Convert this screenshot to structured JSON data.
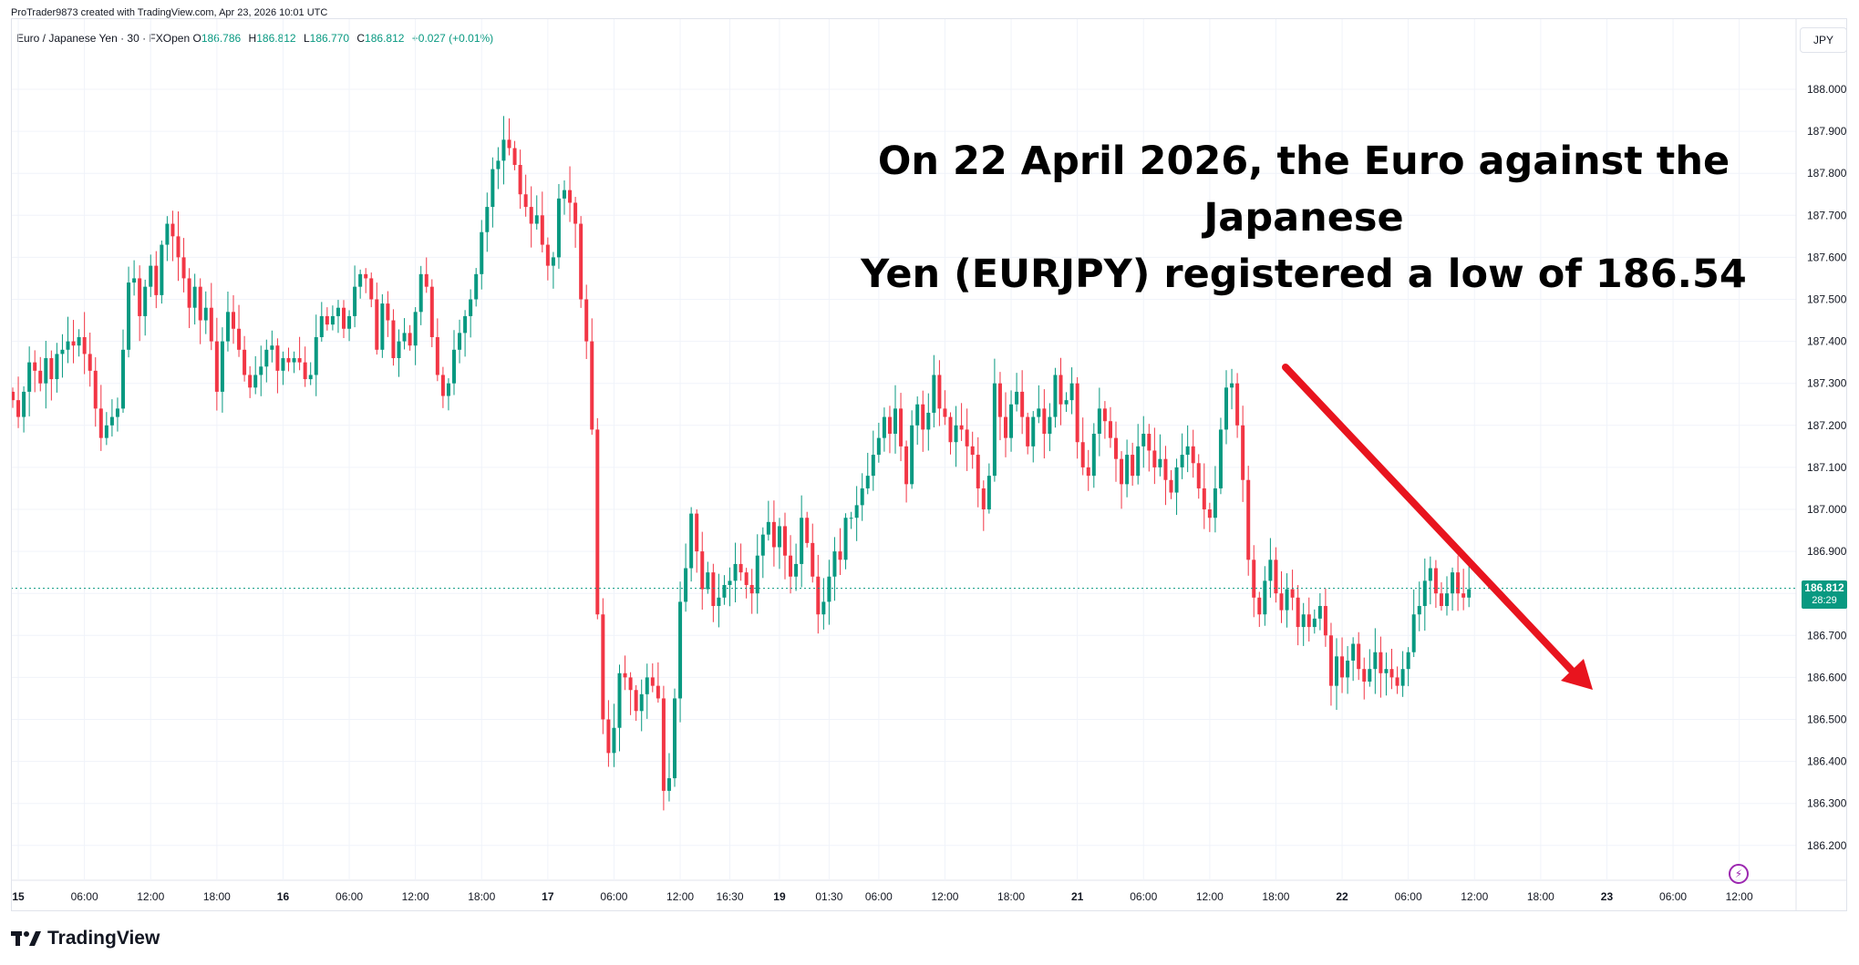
{
  "header": {
    "credit": "ProTrader9873 created with TradingView.com, Apr 23, 2026 10:01 UTC",
    "symbol": "Euro / Japanese Yen · 30 · FXOpen",
    "ohlc": {
      "o_label": "O",
      "o": "186.786",
      "h_label": "H",
      "h": "186.812",
      "l_label": "L",
      "l": "186.770",
      "c_label": "C",
      "c": "186.812",
      "change": "+0.027 (+0.01%)"
    },
    "currency_button": "JPY"
  },
  "annotation": {
    "line1": "On 22 April 2026, the Euro against the Japanese",
    "line2": "Yen (EURJPY) registered a low of 186.54"
  },
  "price_tag": {
    "price": "186.812",
    "timer": "28:29"
  },
  "brand": "TradingView",
  "colors": {
    "up": "#089981",
    "down": "#f23645",
    "arrow": "#e8141e",
    "grid": "#f0f3fa",
    "text": "#131722"
  },
  "chart_data": {
    "type": "candlestick",
    "title": "Euro / Japanese Yen · 30 · FXOpen",
    "ylim": [
      186.1,
      188.1
    ],
    "y_ticks": [
      "188.000",
      "187.900",
      "187.800",
      "187.700",
      "187.600",
      "187.500",
      "187.400",
      "187.300",
      "187.200",
      "187.100",
      "187.000",
      "186.900",
      "186.800",
      "186.700",
      "186.600",
      "186.500",
      "186.400",
      "186.300",
      "186.200"
    ],
    "x_ticks": [
      {
        "label": "15",
        "bold": true,
        "i": 1
      },
      {
        "label": "06:00",
        "bold": false,
        "i": 13
      },
      {
        "label": "12:00",
        "bold": false,
        "i": 25
      },
      {
        "label": "18:00",
        "bold": false,
        "i": 37
      },
      {
        "label": "16",
        "bold": true,
        "i": 49
      },
      {
        "label": "06:00",
        "bold": false,
        "i": 61
      },
      {
        "label": "12:00",
        "bold": false,
        "i": 73
      },
      {
        "label": "18:00",
        "bold": false,
        "i": 85
      },
      {
        "label": "17",
        "bold": true,
        "i": 97
      },
      {
        "label": "06:00",
        "bold": false,
        "i": 109
      },
      {
        "label": "12:00",
        "bold": false,
        "i": 121
      },
      {
        "label": "16:30",
        "bold": false,
        "i": 130
      },
      {
        "label": "19",
        "bold": true,
        "i": 139
      },
      {
        "label": "01:30",
        "bold": false,
        "i": 148
      },
      {
        "label": "06:00",
        "bold": false,
        "i": 157
      },
      {
        "label": "12:00",
        "bold": false,
        "i": 169
      },
      {
        "label": "18:00",
        "bold": false,
        "i": 181
      },
      {
        "label": "21",
        "bold": true,
        "i": 193
      },
      {
        "label": "06:00",
        "bold": false,
        "i": 205
      },
      {
        "label": "12:00",
        "bold": false,
        "i": 217
      },
      {
        "label": "18:00",
        "bold": false,
        "i": 229
      },
      {
        "label": "22",
        "bold": true,
        "i": 241
      },
      {
        "label": "06:00",
        "bold": false,
        "i": 253
      },
      {
        "label": "12:00",
        "bold": false,
        "i": 265
      },
      {
        "label": "18:00",
        "bold": false,
        "i": 277
      },
      {
        "label": "23",
        "bold": true,
        "i": 289
      },
      {
        "label": "06:00",
        "bold": false,
        "i": 301
      },
      {
        "label": "12:00",
        "bold": false,
        "i": 313
      }
    ],
    "closes": [
      187.26,
      187.22,
      187.28,
      187.35,
      187.33,
      187.3,
      187.36,
      187.31,
      187.37,
      187.38,
      187.4,
      187.39,
      187.41,
      187.37,
      187.33,
      187.24,
      187.17,
      187.2,
      187.22,
      187.24,
      187.38,
      187.54,
      187.55,
      187.46,
      187.53,
      187.58,
      187.51,
      187.63,
      187.68,
      187.65,
      187.6,
      187.55,
      187.48,
      187.53,
      187.45,
      187.48,
      187.4,
      187.28,
      187.4,
      187.47,
      187.43,
      187.38,
      187.32,
      187.29,
      187.32,
      187.34,
      187.38,
      187.39,
      187.33,
      187.36,
      187.35,
      187.36,
      187.35,
      187.31,
      187.32,
      187.41,
      187.46,
      187.44,
      187.46,
      187.48,
      187.43,
      187.46,
      187.53,
      187.56,
      187.55,
      187.5,
      187.38,
      187.49,
      187.45,
      187.36,
      187.4,
      187.42,
      187.39,
      187.47,
      187.56,
      187.53,
      187.41,
      187.32,
      187.27,
      187.3,
      187.38,
      187.42,
      187.46,
      187.5,
      187.56,
      187.66,
      187.72,
      187.81,
      187.83,
      187.88,
      187.86,
      187.82,
      187.75,
      187.72,
      187.68,
      187.7,
      187.63,
      187.58,
      187.6,
      187.74,
      187.76,
      187.73,
      187.68,
      187.5,
      187.4,
      187.19,
      186.75,
      186.5,
      186.42,
      186.48,
      186.61,
      186.6,
      186.57,
      186.52,
      186.56,
      186.6,
      186.58,
      186.55,
      186.33,
      186.36,
      186.55,
      186.78,
      186.86,
      186.99,
      186.9,
      186.81,
      186.85,
      186.77,
      186.79,
      186.82,
      186.83,
      186.87,
      186.85,
      186.82,
      186.8,
      186.89,
      186.94,
      186.97,
      186.91,
      186.96,
      186.89,
      186.84,
      186.87,
      186.98,
      186.92,
      186.84,
      186.75,
      186.78,
      186.84,
      186.9,
      186.88,
      186.98,
      186.98,
      187.01,
      187.05,
      187.08,
      187.13,
      187.17,
      187.22,
      187.18,
      187.24,
      187.15,
      187.06,
      187.2,
      187.25,
      187.19,
      187.23,
      187.32,
      187.24,
      187.22,
      187.16,
      187.2,
      187.19,
      187.15,
      187.13,
      187.05,
      187.0,
      187.08,
      187.3,
      187.22,
      187.17,
      187.25,
      187.28,
      187.22,
      187.15,
      187.22,
      187.24,
      187.18,
      187.22,
      187.32,
      187.25,
      187.26,
      187.3,
      187.16,
      187.1,
      187.08,
      187.18,
      187.24,
      187.21,
      187.17,
      187.12,
      187.06,
      187.13,
      187.08,
      187.15,
      187.18,
      187.14,
      187.1,
      187.12,
      187.07,
      187.04,
      187.1,
      187.13,
      187.15,
      187.11,
      187.05,
      187.0,
      186.98,
      187.05,
      187.19,
      187.29,
      187.3,
      187.2,
      187.07,
      186.88,
      186.79,
      186.75,
      186.83,
      186.88,
      186.8,
      186.76,
      186.81,
      186.79,
      186.72,
      186.75,
      186.72,
      186.74,
      186.77,
      186.7,
      186.58,
      186.65,
      186.6,
      186.64,
      186.68,
      186.62,
      186.59,
      186.62,
      186.66,
      186.61,
      186.62,
      186.6,
      186.58,
      186.62,
      186.66,
      186.75,
      186.77,
      186.83,
      186.86,
      186.8,
      186.77,
      186.8,
      186.85,
      186.8,
      186.79,
      186.81
    ]
  }
}
